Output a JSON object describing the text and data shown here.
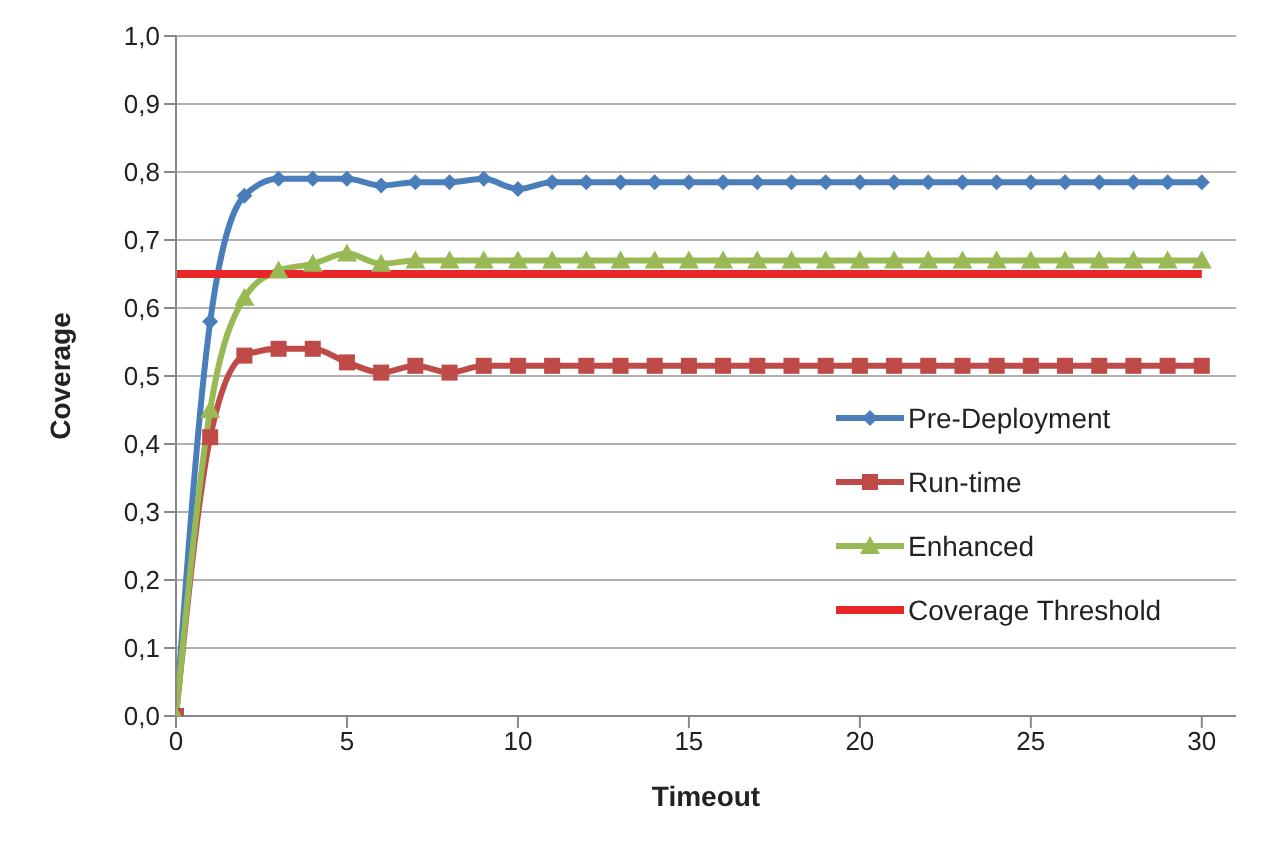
{
  "chart_data": {
    "type": "line",
    "xlabel": "Timeout",
    "ylabel": "Coverage",
    "x": [
      0,
      1,
      2,
      3,
      4,
      5,
      6,
      7,
      8,
      9,
      10,
      11,
      12,
      13,
      14,
      15,
      16,
      17,
      18,
      19,
      20,
      21,
      22,
      23,
      24,
      25,
      26,
      27,
      28,
      29,
      30
    ],
    "series": [
      {
        "name": "Pre-Deployment",
        "color": "#4a7ebb",
        "marker": "diamond",
        "values": [
          0,
          0.58,
          0.765,
          0.79,
          0.79,
          0.79,
          0.78,
          0.785,
          0.785,
          0.79,
          0.775,
          0.785,
          0.785,
          0.785,
          0.785,
          0.785,
          0.785,
          0.785,
          0.785,
          0.785,
          0.785,
          0.785,
          0.785,
          0.785,
          0.785,
          0.785,
          0.785,
          0.785,
          0.785,
          0.785,
          0.785
        ]
      },
      {
        "name": "Run-time",
        "color": "#be4b48",
        "marker": "square",
        "values": [
          0,
          0.41,
          0.53,
          0.54,
          0.54,
          0.52,
          0.505,
          0.515,
          0.505,
          0.515,
          0.515,
          0.515,
          0.515,
          0.515,
          0.515,
          0.515,
          0.515,
          0.515,
          0.515,
          0.515,
          0.515,
          0.515,
          0.515,
          0.515,
          0.515,
          0.515,
          0.515,
          0.515,
          0.515,
          0.515,
          0.515
        ]
      },
      {
        "name": "Enhanced",
        "color": "#98b954",
        "marker": "triangle",
        "values": [
          0,
          0.45,
          0.615,
          0.655,
          0.665,
          0.68,
          0.665,
          0.67,
          0.67,
          0.67,
          0.67,
          0.67,
          0.67,
          0.67,
          0.67,
          0.67,
          0.67,
          0.67,
          0.67,
          0.67,
          0.67,
          0.67,
          0.67,
          0.67,
          0.67,
          0.67,
          0.67,
          0.67,
          0.67,
          0.67,
          0.67
        ]
      },
      {
        "name": "Coverage Threshold",
        "color": "#e8262a",
        "marker": "none",
        "values": [
          0.65,
          0.65,
          0.65,
          0.65,
          0.65,
          0.65,
          0.65,
          0.65,
          0.65,
          0.65,
          0.65,
          0.65,
          0.65,
          0.65,
          0.65,
          0.65,
          0.65,
          0.65,
          0.65,
          0.65,
          0.65,
          0.65,
          0.65,
          0.65,
          0.65,
          0.65,
          0.65,
          0.65,
          0.65,
          0.65,
          0.65
        ]
      }
    ],
    "xlim": [
      0,
      31
    ],
    "xticks": [
      0,
      5,
      10,
      15,
      20,
      25,
      30
    ],
    "ylim": [
      0,
      1
    ],
    "yticks": [
      {
        "value": 0,
        "label": "0,0"
      },
      {
        "value": 0.1,
        "label": "0,1"
      },
      {
        "value": 0.2,
        "label": "0,2"
      },
      {
        "value": 0.3,
        "label": "0,3"
      },
      {
        "value": 0.4,
        "label": "0,4"
      },
      {
        "value": 0.5,
        "label": "0,5"
      },
      {
        "value": 0.6,
        "label": "0,6"
      },
      {
        "value": 0.7,
        "label": "0,7"
      },
      {
        "value": 0.8,
        "label": "0,8"
      },
      {
        "value": 0.9,
        "label": "0,9"
      },
      {
        "value": 1,
        "label": "1,0"
      }
    ],
    "grid": "y",
    "legend": "bottom right",
    "line_style": "solid"
  }
}
